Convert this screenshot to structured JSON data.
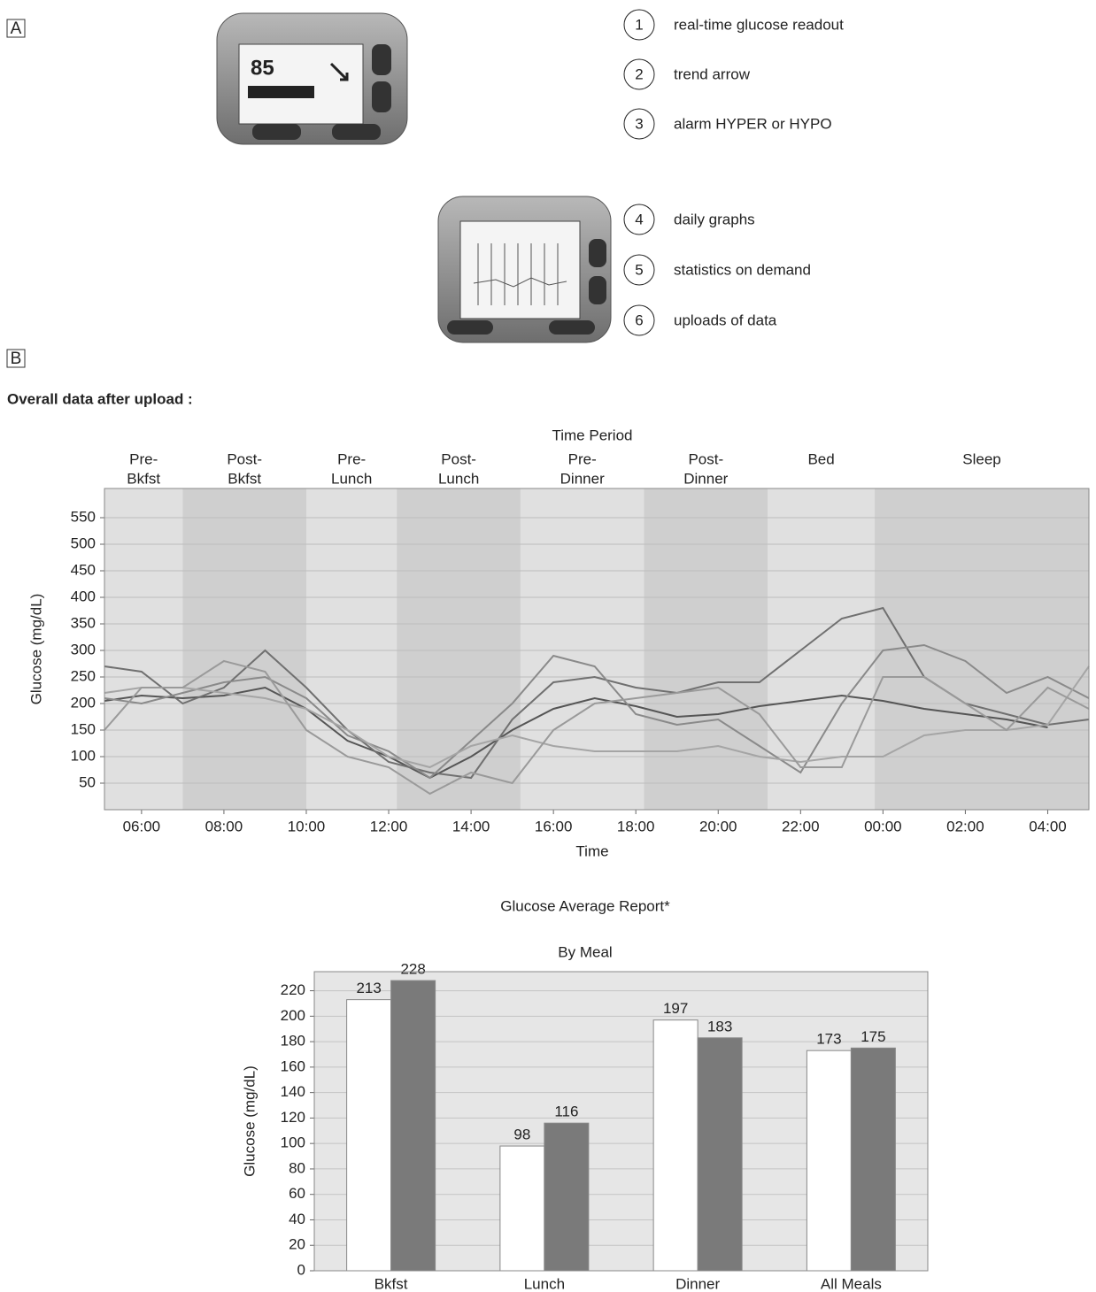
{
  "panel_a": {
    "label": "A",
    "device_reading": "85",
    "features": [
      {
        "number": "1",
        "text": "real-time glucose readout"
      },
      {
        "number": "2",
        "text": "trend arrow"
      },
      {
        "number": "3",
        "text": "alarm HYPER or HYPO"
      },
      {
        "number": "4",
        "text": "daily graphs"
      },
      {
        "number": "5",
        "text": "statistics on demand"
      },
      {
        "number": "6",
        "text": "uploads of data"
      }
    ]
  },
  "panel_b": {
    "label": "B",
    "heading": "Overall data after upload :"
  },
  "chart_data": [
    {
      "type": "line",
      "title": "Time Period",
      "x_label": "Time",
      "y_label": "Glucose (mg/dL)",
      "xlim": [
        5.1,
        29
      ],
      "ylim": [
        0,
        605
      ],
      "xticks": [
        {
          "value": 6,
          "label": "06:00"
        },
        {
          "value": 8,
          "label": "08:00"
        },
        {
          "value": 10,
          "label": "10:00"
        },
        {
          "value": 12,
          "label": "12:00"
        },
        {
          "value": 14,
          "label": "14:00"
        },
        {
          "value": 16,
          "label": "16:00"
        },
        {
          "value": 18,
          "label": "18:00"
        },
        {
          "value": 20,
          "label": "20:00"
        },
        {
          "value": 22,
          "label": "22:00"
        },
        {
          "value": 24,
          "label": "00:00"
        },
        {
          "value": 26,
          "label": "02:00"
        },
        {
          "value": 28,
          "label": "04:00"
        }
      ],
      "yticks": [
        50,
        100,
        150,
        200,
        250,
        300,
        350,
        400,
        450,
        500,
        550
      ],
      "grid": true,
      "periods": [
        {
          "label": [
            "Pre-",
            "Bkfst"
          ],
          "start": 5.1,
          "end": 7,
          "color": "#e0e0e0"
        },
        {
          "label": [
            "Post-",
            "Bkfst"
          ],
          "start": 7,
          "end": 10,
          "color": "#cfcfcf"
        },
        {
          "label": [
            "Pre-",
            "Lunch"
          ],
          "start": 10,
          "end": 12.2,
          "color": "#e0e0e0"
        },
        {
          "label": [
            "Post-",
            "Lunch"
          ],
          "start": 12.2,
          "end": 15.2,
          "color": "#cfcfcf"
        },
        {
          "label": [
            "Pre-",
            "Dinner"
          ],
          "start": 15.2,
          "end": 18.2,
          "color": "#e0e0e0"
        },
        {
          "label": [
            "Post-",
            "Dinner"
          ],
          "start": 18.2,
          "end": 21.2,
          "color": "#cfcfcf"
        },
        {
          "label": [
            "Bed"
          ],
          "start": 21.2,
          "end": 23.8,
          "color": "#e0e0e0"
        },
        {
          "label": [
            "Sleep"
          ],
          "start": 23.8,
          "end": 29,
          "color": "#cfcfcf"
        }
      ],
      "x": [
        5.1,
        6,
        7,
        8,
        9,
        10,
        11,
        12,
        13,
        14,
        15,
        16,
        17,
        18,
        19,
        20,
        21,
        22,
        23,
        24,
        25,
        26,
        27,
        28,
        29
      ],
      "series": [
        {
          "color": "#555555",
          "values": [
            205,
            215,
            210,
            215,
            230,
            190,
            130,
            100,
            60,
            100,
            150,
            190,
            210,
            195,
            175,
            180,
            195,
            205,
            215,
            205,
            190,
            180,
            170,
            155,
            null
          ]
        },
        {
          "color": "#707070",
          "values": [
            270,
            260,
            200,
            230,
            300,
            230,
            150,
            90,
            70,
            60,
            170,
            240,
            250,
            230,
            220,
            240,
            240,
            300,
            360,
            380,
            250,
            200,
            180,
            160,
            170
          ]
        },
        {
          "color": "#8a8a8a",
          "values": [
            210,
            200,
            220,
            240,
            250,
            210,
            140,
            110,
            60,
            130,
            200,
            290,
            270,
            180,
            160,
            170,
            120,
            70,
            200,
            300,
            310,
            280,
            220,
            250,
            210
          ]
        },
        {
          "color": "#a5a5a5",
          "values": [
            220,
            230,
            230,
            220,
            210,
            190,
            150,
            100,
            80,
            120,
            140,
            120,
            110,
            110,
            110,
            120,
            100,
            90,
            100,
            100,
            140,
            150,
            150,
            160,
            270
          ]
        },
        {
          "color": "#9a9a9a",
          "values": [
            150,
            230,
            230,
            280,
            260,
            150,
            100,
            80,
            30,
            70,
            50,
            150,
            200,
            210,
            220,
            230,
            180,
            80,
            80,
            250,
            250,
            200,
            150,
            230,
            190
          ]
        }
      ]
    },
    {
      "type": "bar",
      "title": "Glucose Average Report*",
      "subtitle": "By Meal",
      "y_label": "Glucose (mg/dL)",
      "categories": [
        "Bkfst",
        "Lunch",
        "Dinner",
        "All Meals"
      ],
      "ylim": [
        0,
        235
      ],
      "yticks": [
        0,
        20,
        40,
        60,
        80,
        100,
        120,
        140,
        160,
        180,
        200,
        220
      ],
      "grid": true,
      "series": [
        {
          "color": "#ffffff",
          "values": [
            213,
            98,
            197,
            173
          ]
        },
        {
          "color": "#7a7a7a",
          "values": [
            228,
            116,
            183,
            175
          ]
        }
      ]
    }
  ]
}
